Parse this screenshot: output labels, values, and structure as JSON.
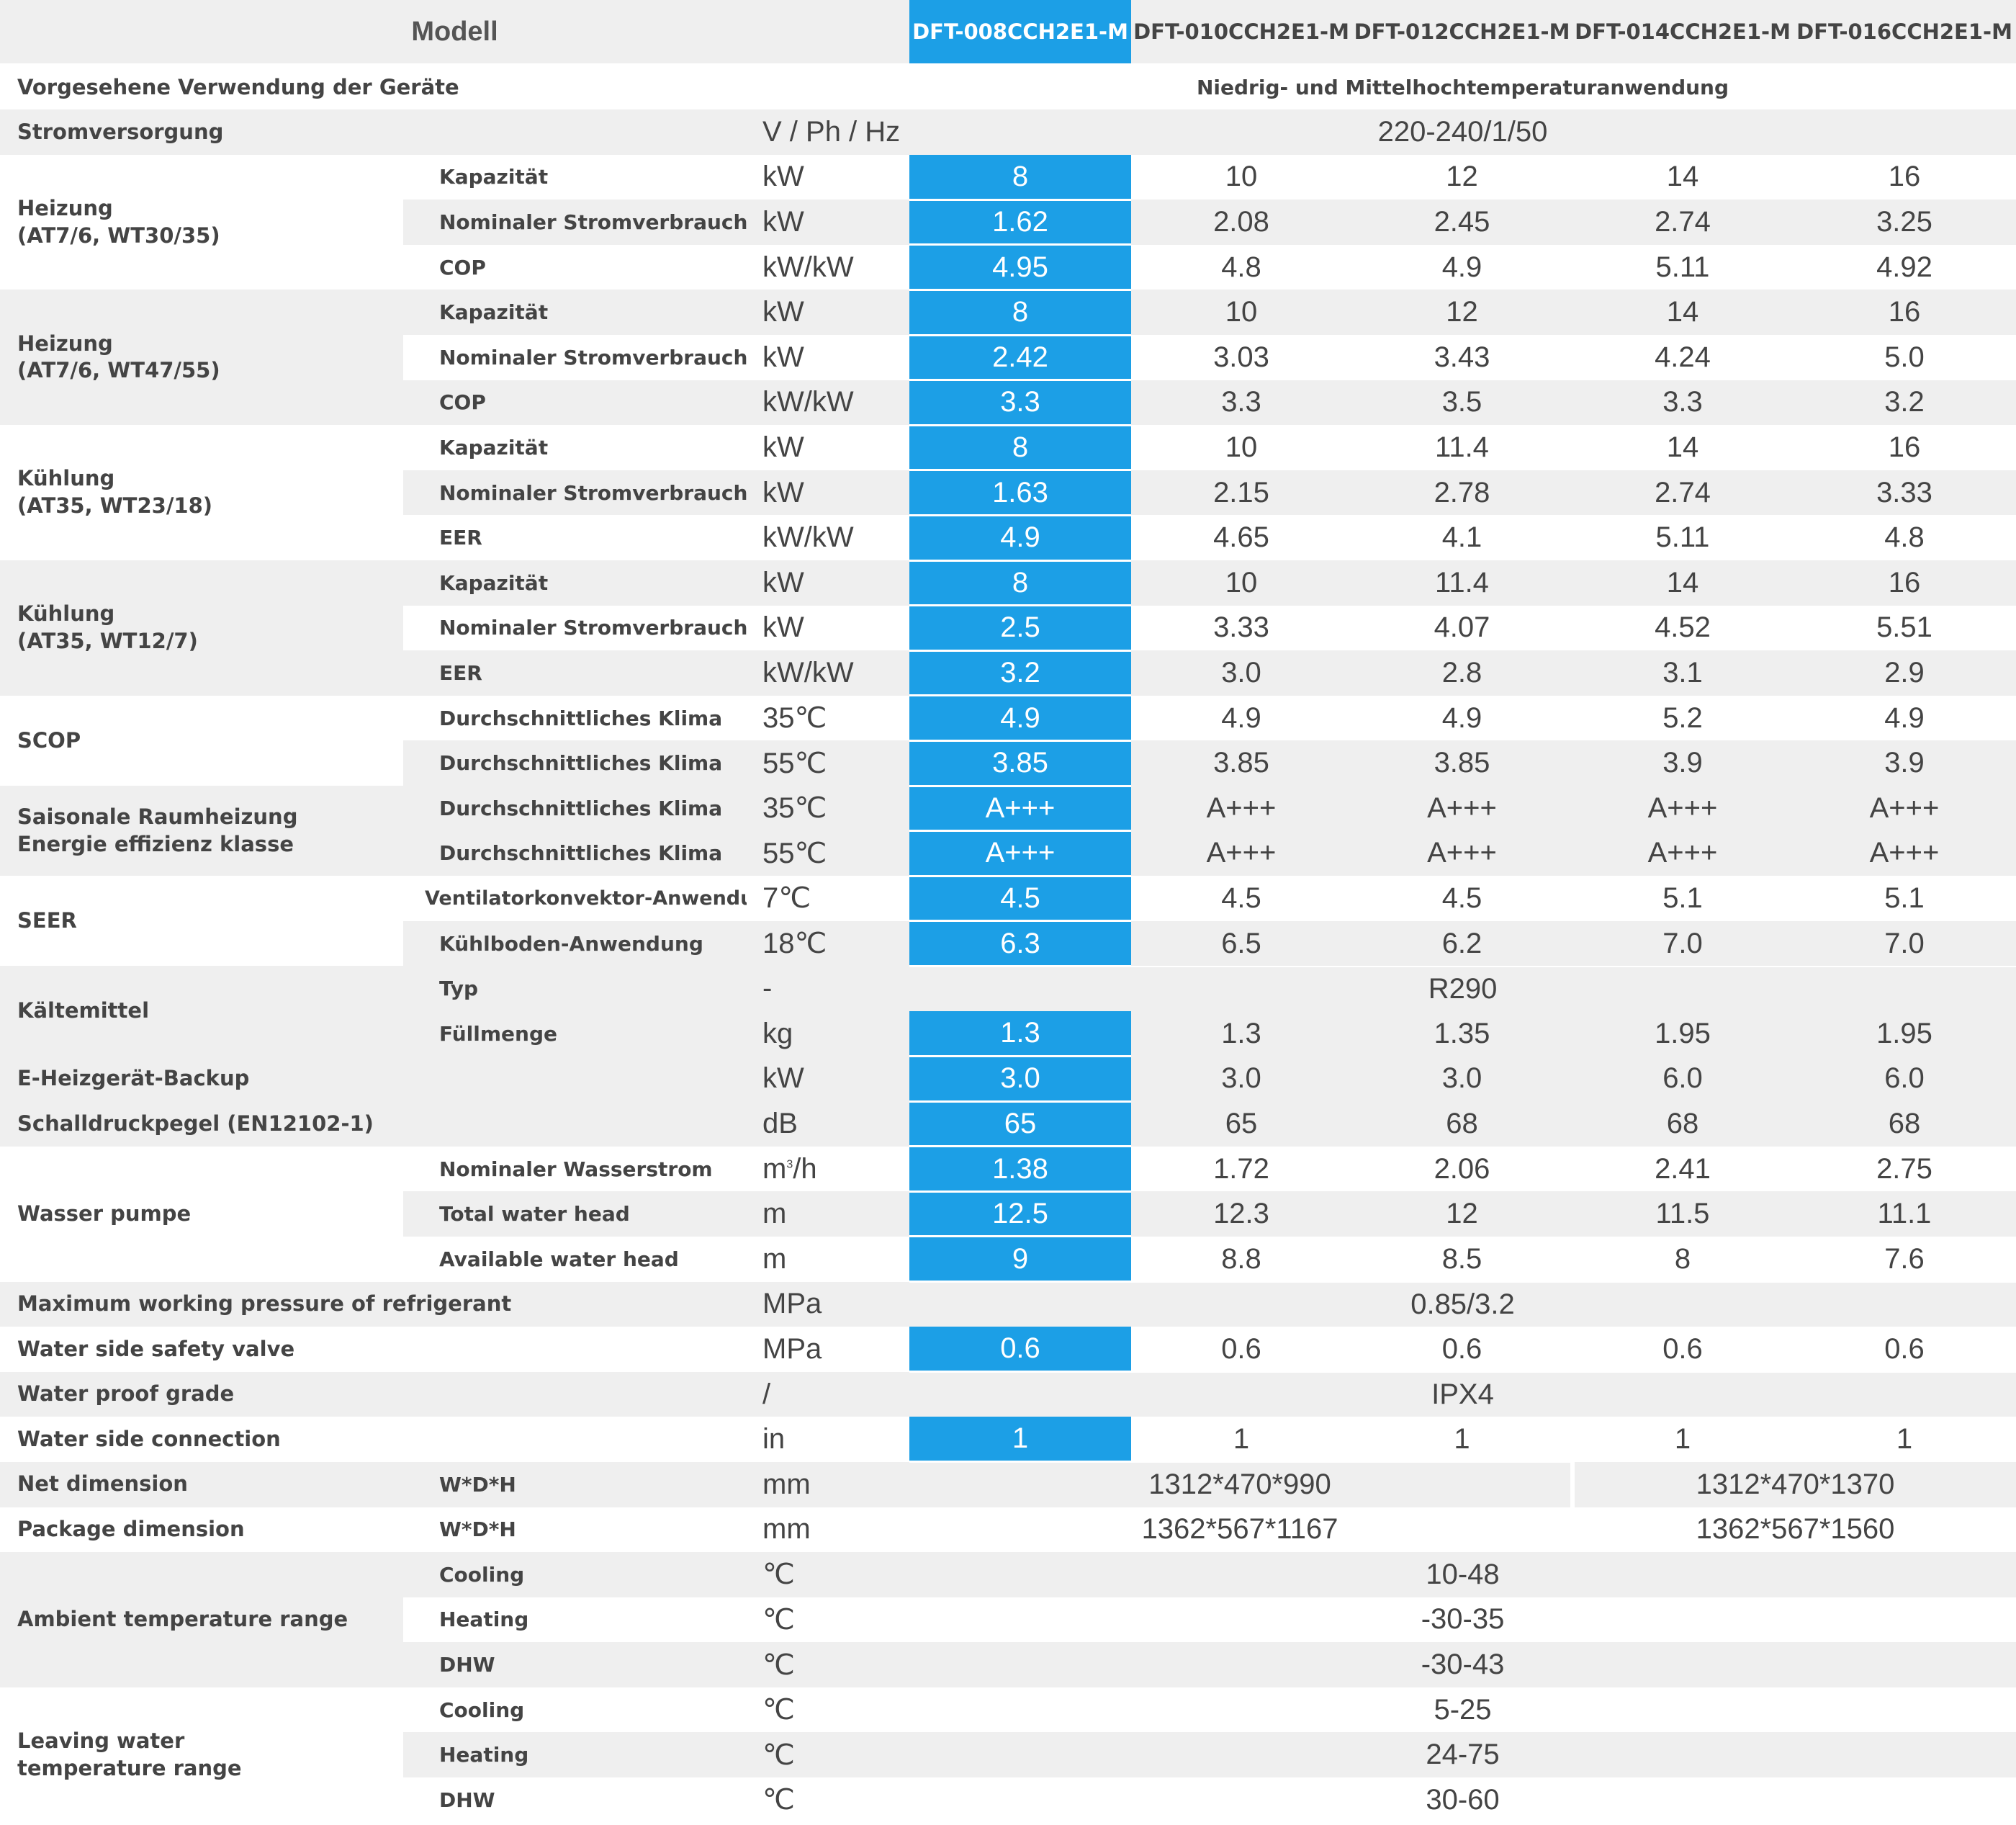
{
  "header": {
    "model_label": "Modell",
    "models": [
      "DFT-008CCH2E1-M",
      "DFT-010CCH2E1-M",
      "DFT-012CCH2E1-M",
      "DFT-014CCH2E1-M",
      "DFT-016CCH2E1-M"
    ]
  },
  "colors": {
    "highlight": "#1c9fe6",
    "row_gray": "#efefef",
    "text": "#444444"
  },
  "rows": {
    "usage": {
      "label": "Vorgesehene Verwendung der Geräte",
      "value": "Niedrig- und Mittelhochtemperaturanwendung"
    },
    "power": {
      "label": "Stromversorgung",
      "unit": "V / Ph / Hz",
      "value": "220-240/1/50"
    },
    "heat1": {
      "group": "Heizung",
      "group2": "(AT7/6, WT30/35)",
      "capacity": {
        "label": "Kapazität",
        "unit": "kW",
        "values": [
          "8",
          "10",
          "12",
          "14",
          "16"
        ]
      },
      "power": {
        "label": "Nominaler Stromverbrauch",
        "unit": "kW",
        "values": [
          "1.62",
          "2.08",
          "2.45",
          "2.74",
          "3.25"
        ]
      },
      "cop": {
        "label": "COP",
        "unit": "kW/kW",
        "values": [
          "4.95",
          "4.8",
          "4.9",
          "5.11",
          "4.92"
        ]
      }
    },
    "heat2": {
      "group": "Heizung",
      "group2": "(AT7/6, WT47/55)",
      "capacity": {
        "label": "Kapazität",
        "unit": "kW",
        "values": [
          "8",
          "10",
          "12",
          "14",
          "16"
        ]
      },
      "power": {
        "label": "Nominaler Stromverbrauch",
        "unit": "kW",
        "values": [
          "2.42",
          "3.03",
          "3.43",
          "4.24",
          "5.0"
        ]
      },
      "cop": {
        "label": "COP",
        "unit": "kW/kW",
        "values": [
          "3.3",
          "3.3",
          "3.5",
          "3.3",
          "3.2"
        ]
      }
    },
    "cool1": {
      "group": "Kühlung",
      "group2": "(AT35, WT23/18)",
      "capacity": {
        "label": "Kapazität",
        "unit": "kW",
        "values": [
          "8",
          "10",
          "11.4",
          "14",
          "16"
        ]
      },
      "power": {
        "label": "Nominaler Stromverbrauch",
        "unit": "kW",
        "values": [
          "1.63",
          "2.15",
          "2.78",
          "2.74",
          "3.33"
        ]
      },
      "eer": {
        "label": "EER",
        "unit": "kW/kW",
        "values": [
          "4.9",
          "4.65",
          "4.1",
          "5.11",
          "4.8"
        ]
      }
    },
    "cool2": {
      "group": "Kühlung",
      "group2": "(AT35, WT12/7)",
      "capacity": {
        "label": "Kapazität",
        "unit": "kW",
        "values": [
          "8",
          "10",
          "11.4",
          "14",
          "16"
        ]
      },
      "power": {
        "label": "Nominaler Stromverbrauch",
        "unit": "kW",
        "values": [
          "2.5",
          "3.33",
          "4.07",
          "4.52",
          "5.51"
        ]
      },
      "eer": {
        "label": "EER",
        "unit": "kW/kW",
        "values": [
          "3.2",
          "3.0",
          "2.8",
          "3.1",
          "2.9"
        ]
      }
    },
    "scop": {
      "group": "SCOP",
      "r35": {
        "label": "Durchschnittliches Klima",
        "unit": "35℃",
        "values": [
          "4.9",
          "4.9",
          "4.9",
          "5.2",
          "4.9"
        ]
      },
      "r55": {
        "label": "Durchschnittliches Klima",
        "unit": "55℃",
        "values": [
          "3.85",
          "3.85",
          "3.85",
          "3.9",
          "3.9"
        ]
      }
    },
    "eec": {
      "group": "Saisonale Raumheizung",
      "group2": "Energie effizienz klasse",
      "r35": {
        "label": "Durchschnittliches Klima",
        "unit": "35℃",
        "values": [
          "A+++",
          "A+++",
          "A+++",
          "A+++",
          "A+++"
        ]
      },
      "r55": {
        "label": "Durchschnittliches Klima",
        "unit": "55℃",
        "values": [
          "A+++",
          "A+++",
          "A+++",
          "A+++",
          "A+++"
        ]
      }
    },
    "seer": {
      "group": "SEER",
      "fan": {
        "label": "Ventilatorkonvektor-Anwendung",
        "unit": "7℃",
        "values": [
          "4.5",
          "4.5",
          "4.5",
          "5.1",
          "5.1"
        ]
      },
      "floor": {
        "label": "Kühlboden-Anwendung",
        "unit": "18℃",
        "values": [
          "6.3",
          "6.5",
          "6.2",
          "7.0",
          "7.0"
        ]
      }
    },
    "refrigerant": {
      "group": "Kältemittel",
      "type": {
        "label": "Typ",
        "unit": "-",
        "value": "R290"
      },
      "charge": {
        "label": "Füllmenge",
        "unit": "kg",
        "values": [
          "1.3",
          "1.3",
          "1.35",
          "1.95",
          "1.95"
        ]
      }
    },
    "eheater": {
      "label": "E-Heizgerät-Backup",
      "unit": "kW",
      "values": [
        "3.0",
        "3.0",
        "3.0",
        "6.0",
        "6.0"
      ]
    },
    "sound": {
      "label": "Schalldruckpegel  (EN12102-1)",
      "unit": "dB",
      "values": [
        "65",
        "65",
        "68",
        "68",
        "68"
      ]
    },
    "pump": {
      "group": "Wasser pumpe",
      "flow": {
        "label": "Nominaler Wasserstrom",
        "unit": "m",
        "unit_sup": "3",
        "unit_tail": "/h",
        "values": [
          "1.38",
          "1.72",
          "2.06",
          "2.41",
          "2.75"
        ]
      },
      "total_head": {
        "label": "Total water head",
        "unit": "m",
        "values": [
          "12.5",
          "12.3",
          "12",
          "11.5",
          "11.1"
        ]
      },
      "avail_head": {
        "label": "Available water head",
        "unit": "m",
        "values": [
          "9",
          "8.8",
          "8.5",
          "8",
          "7.6"
        ]
      }
    },
    "max_pressure": {
      "label": "Maximum working pressure of refrigerant",
      "unit": "MPa",
      "value": "0.85/3.2"
    },
    "safety_valve": {
      "label": "Water side safety valve",
      "unit": "MPa",
      "values": [
        "0.6",
        "0.6",
        "0.6",
        "0.6",
        "0.6"
      ]
    },
    "waterproof": {
      "label": "Water proof grade",
      "unit": "/",
      "value": "IPX4"
    },
    "connection": {
      "label": "Water side connection",
      "unit": "in",
      "values": [
        "1",
        "1",
        "1",
        "1",
        "1"
      ]
    },
    "net_dim": {
      "label": "Net dimension",
      "sub": "W*D*H",
      "unit": "mm",
      "value_small": "1312*470*990",
      "value_large": "1312*470*1370"
    },
    "pkg_dim": {
      "label": "Package dimension",
      "sub": "W*D*H",
      "unit": "mm",
      "value_small": "1362*567*1167",
      "value_large": "1362*567*1560"
    },
    "ambient": {
      "group": "Ambient temperature range",
      "cooling": {
        "label": "Cooling",
        "unit": "℃",
        "value": "10-48"
      },
      "heating": {
        "label": "Heating",
        "unit": "℃",
        "value": "-30-35"
      },
      "dhw": {
        "label": "DHW",
        "unit": "℃",
        "value": "-30-43"
      }
    },
    "leaving": {
      "group": "Leaving water",
      "group2": "temperature range",
      "cooling": {
        "label": "Cooling",
        "unit": "℃",
        "value": "5-25"
      },
      "heating": {
        "label": "Heating",
        "unit": "℃",
        "value": "24-75"
      },
      "dhw": {
        "label": "DHW",
        "unit": "℃",
        "value": "30-60"
      }
    }
  }
}
